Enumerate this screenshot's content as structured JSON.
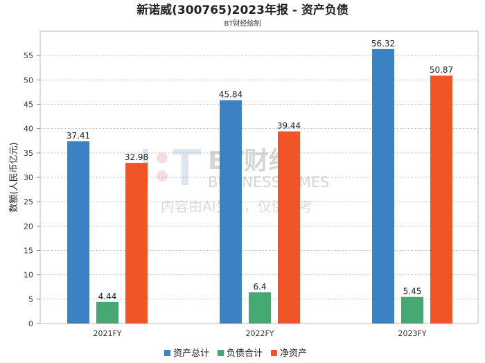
{
  "chart_data": {
    "type": "bar",
    "title": "新诺威(300765)2023年报 - 资产负债",
    "subtitle": "BT财经绘制",
    "xlabel": "",
    "ylabel": "数额(人民币亿元)",
    "ylim": [
      0,
      60
    ],
    "yticks": [
      0,
      5,
      10,
      15,
      20,
      25,
      30,
      35,
      40,
      45,
      50,
      55
    ],
    "grid": true,
    "legend_position": "bottom",
    "categories": [
      "2021FY",
      "2022FY",
      "2023FY"
    ],
    "series": [
      {
        "name": "资产总计",
        "color": "#3a82c2",
        "values": [
          37.41,
          45.84,
          56.32
        ],
        "labels": [
          "37.41",
          "45.84",
          "56.32"
        ]
      },
      {
        "name": "负债合计",
        "color": "#45a872",
        "values": [
          4.44,
          6.4,
          5.45
        ],
        "labels": [
          "4.44",
          "6.4",
          "5.45"
        ]
      },
      {
        "name": "净资产",
        "color": "#ef5527",
        "values": [
          32.98,
          39.44,
          50.87
        ],
        "labels": [
          "32.98",
          "39.44",
          "50.87"
        ]
      }
    ]
  },
  "watermark": {
    "brand": "BT财经",
    "english": "BUSINESS TIMES",
    "notice": "内容由AI生成，仅供参考"
  }
}
